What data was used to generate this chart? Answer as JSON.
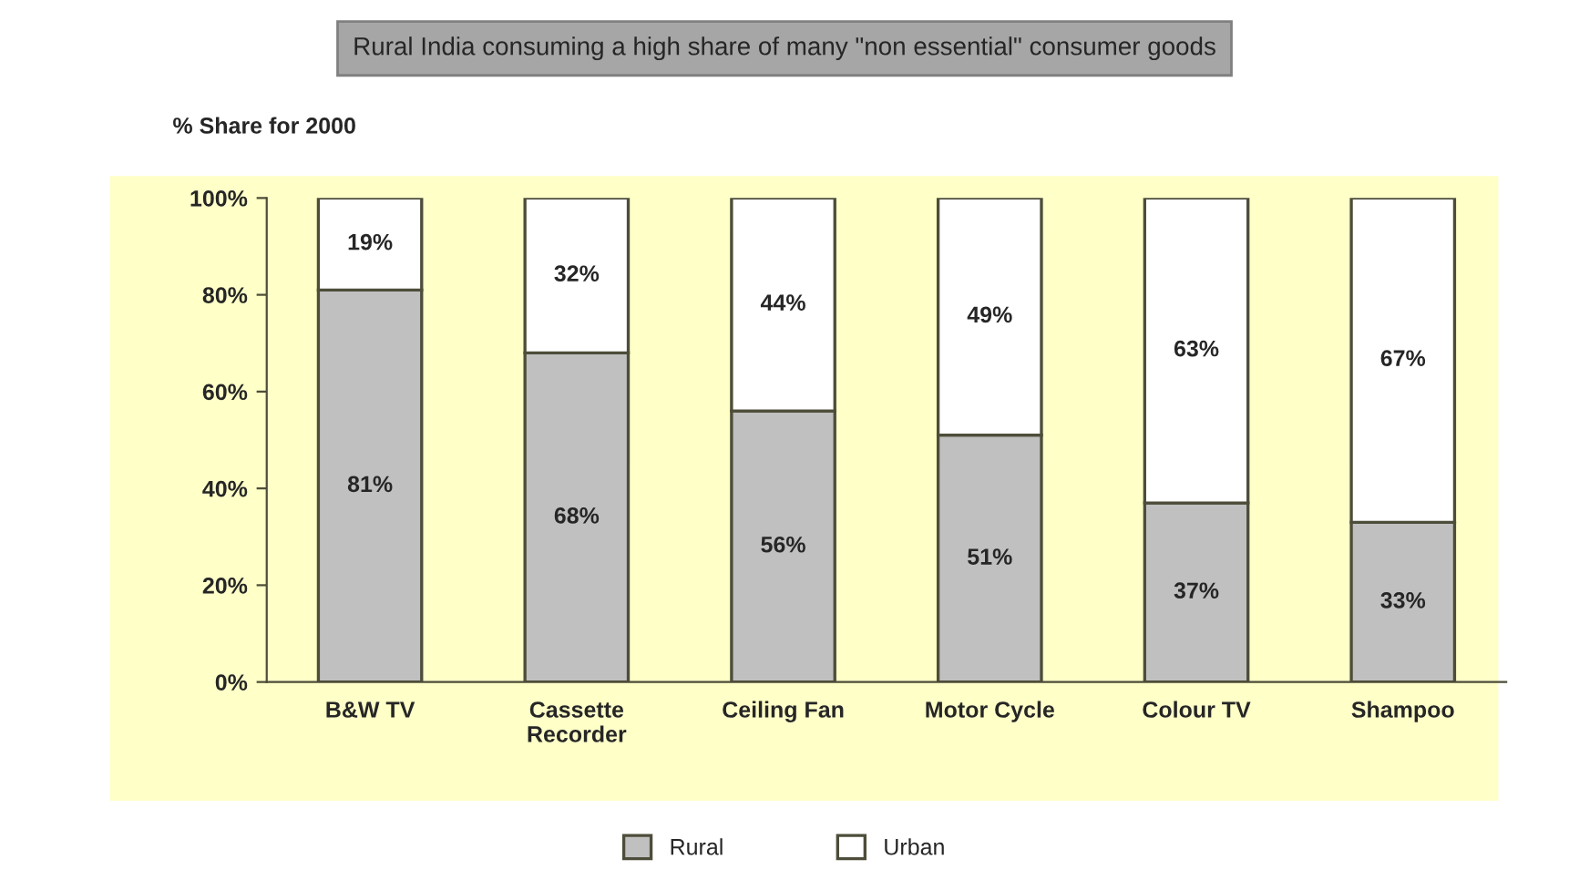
{
  "chart_data": {
    "type": "bar",
    "title": "Rural India consuming a high share of many \"non essential\" consumer goods",
    "subtitle": "% Share for 2000",
    "categories": [
      "B&W TV",
      "Cassette\nRecorder",
      "Ceiling Fan",
      "Motor Cycle",
      "Colour TV",
      "Shampoo"
    ],
    "series": [
      {
        "name": "Rural",
        "color": "#c0c0c0",
        "values": [
          81,
          68,
          56,
          51,
          37,
          33
        ],
        "value_labels": [
          "81%",
          "68%",
          "56%",
          "51%",
          "37%",
          "33%"
        ]
      },
      {
        "name": "Urban",
        "color": "#ffffff",
        "values": [
          19,
          32,
          44,
          49,
          63,
          67
        ],
        "value_labels": [
          "19%",
          "32%",
          "44%",
          "49%",
          "63%",
          "67%"
        ]
      }
    ],
    "stacked": true,
    "ylim": [
      0,
      100
    ],
    "yticks": [
      {
        "value": 0,
        "label": "0%"
      },
      {
        "value": 20,
        "label": "20%"
      },
      {
        "value": 40,
        "label": "40%"
      },
      {
        "value": 60,
        "label": "60%"
      },
      {
        "value": 80,
        "label": "80%"
      },
      {
        "value": 100,
        "label": "100%"
      }
    ],
    "grid": false,
    "legend": "bottom"
  }
}
